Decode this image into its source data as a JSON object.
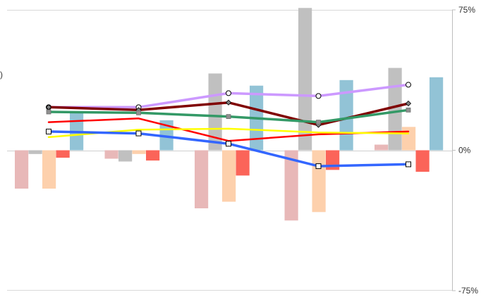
{
  "chart_data": {
    "type": "bar",
    "y_axis": {
      "side": "right",
      "ylim": [
        -75,
        75
      ],
      "ticks": [
        75,
        0,
        -75
      ],
      "tick_labels": [
        "75%",
        "0%",
        "-75%"
      ],
      "grid": false
    },
    "categories_count": 5,
    "left_edge_fragment": ")",
    "bar_series": [
      {
        "color": "#e8b8b8",
        "values": [
          -20.5,
          -4.5,
          -31,
          -37.5,
          3
        ]
      },
      {
        "color": "#c0c0c0",
        "values": [
          -2,
          -6,
          41,
          76,
          44
        ]
      },
      {
        "color": "#fdd0ac",
        "values": [
          -20.5,
          -2,
          -27.5,
          -33,
          12.5
        ]
      },
      {
        "color": "#fb6459",
        "values": [
          -4,
          -5.5,
          -13.5,
          -10.5,
          -11.5
        ]
      },
      {
        "color": "#92c3d6",
        "values": [
          20.5,
          16,
          34.5,
          37.5,
          39
        ]
      }
    ],
    "line_series": [
      {
        "color": "#cc99ff",
        "marker": "circle",
        "values": [
          23,
          23,
          30.5,
          29,
          35
        ],
        "marked": [
          0,
          1,
          2,
          3,
          4
        ]
      },
      {
        "color": "#800000",
        "marker": "diamond",
        "values": [
          23,
          21.5,
          25.5,
          13.5,
          25
        ],
        "marked": [
          0,
          1,
          2,
          3,
          4
        ]
      },
      {
        "color": "#339966",
        "marker": "square-gray",
        "values": [
          20.5,
          20,
          18,
          15,
          21.5
        ],
        "marked": [
          0,
          1,
          2,
          3,
          4
        ]
      },
      {
        "color": "#ff0000",
        "marker": "none",
        "values": [
          15,
          17,
          5,
          8.5,
          10
        ]
      },
      {
        "color": "#ffff00",
        "marker": "none",
        "values": [
          7,
          11,
          11.5,
          9.5,
          9
        ]
      },
      {
        "color": "#3366ff",
        "marker": "square",
        "values": [
          10,
          9,
          3.5,
          -8.5,
          -7.5
        ],
        "marked": [
          0,
          1,
          2,
          3,
          4
        ]
      }
    ]
  }
}
